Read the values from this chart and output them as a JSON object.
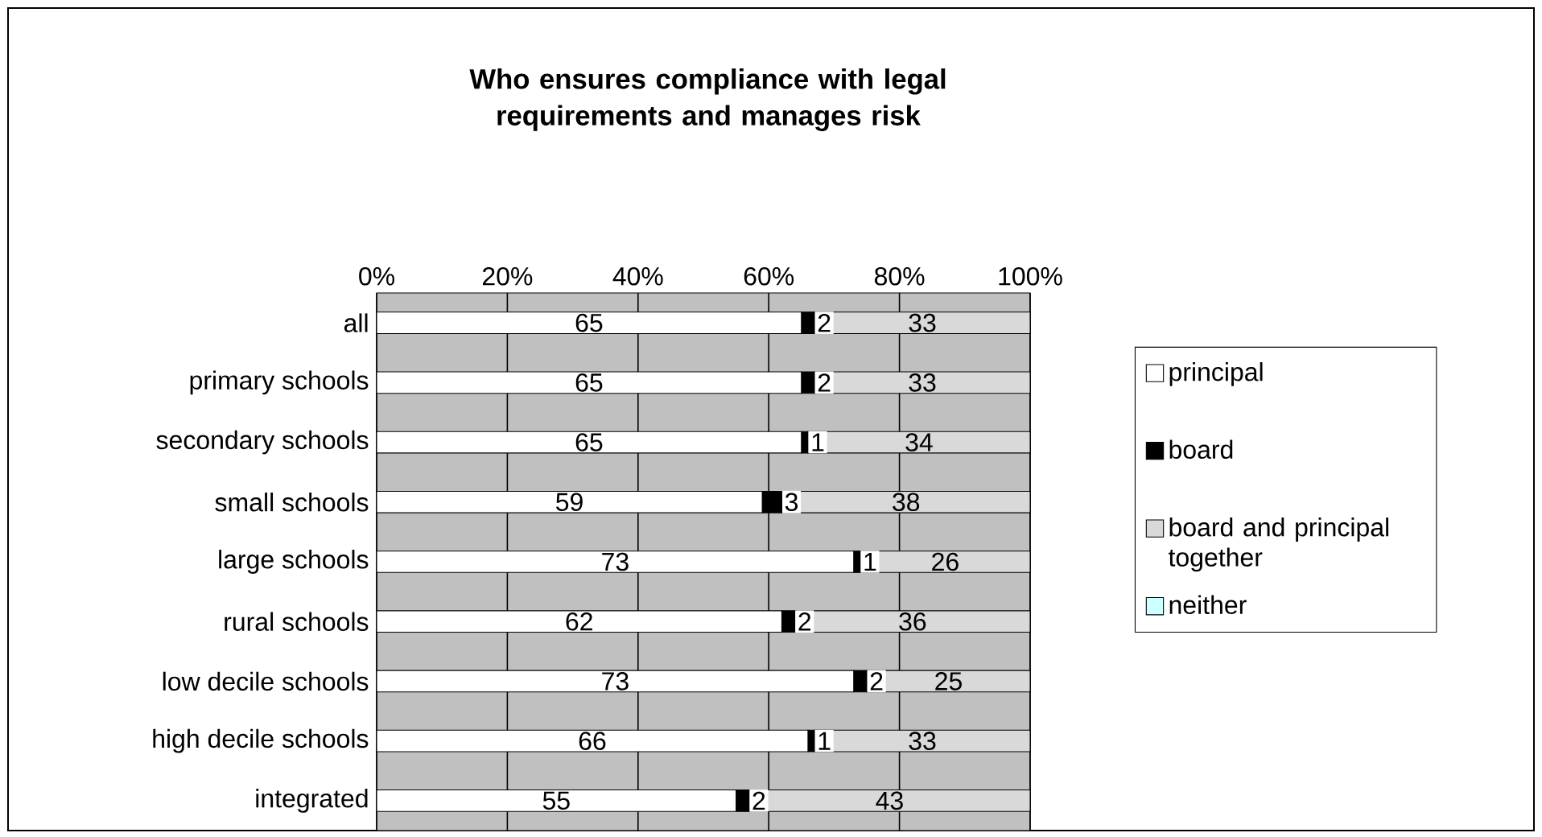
{
  "chart_data": {
    "type": "bar",
    "orientation": "horizontal",
    "stacked": true,
    "title": "Who ensures compliance with legal requirements and manages risk",
    "categories": [
      "all",
      "primary schools",
      "secondary schools",
      "small schools",
      "large schools",
      "rural schools",
      "low  decile schools",
      "high decile schools",
      "integrated"
    ],
    "series": [
      {
        "name": "principal",
        "color": "#ffffff",
        "values": [
          65,
          65,
          65,
          59,
          73,
          62,
          73,
          66,
          55
        ]
      },
      {
        "name": "board",
        "color": "#000000",
        "values": [
          2,
          2,
          1,
          3,
          1,
          2,
          2,
          1,
          2
        ]
      },
      {
        "name": "board and principal together",
        "color": "#d9d9d9",
        "values": [
          33,
          33,
          34,
          38,
          26,
          36,
          25,
          33,
          43
        ]
      },
      {
        "name": "neither",
        "color": "#ccffff",
        "values": [
          null,
          null,
          null,
          null,
          null,
          null,
          null,
          null,
          null
        ]
      }
    ],
    "xlim": [
      0,
      100
    ],
    "xticks": [
      {
        "value": 0,
        "label": "0%"
      },
      {
        "value": 20,
        "label": "20%"
      },
      {
        "value": 40,
        "label": "40%"
      },
      {
        "value": 60,
        "label": "60%"
      },
      {
        "value": 80,
        "label": "80%"
      },
      {
        "value": 100,
        "label": "100%"
      }
    ],
    "grid": "x",
    "legend": "right",
    "data_labels": true
  }
}
